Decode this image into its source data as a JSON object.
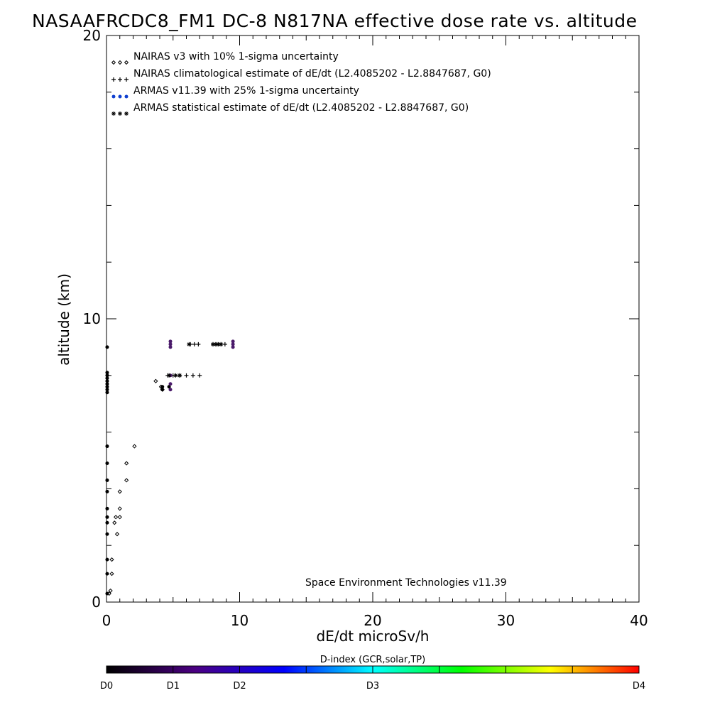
{
  "chart_data": {
    "type": "scatter",
    "title": "NASAAFRCDC8_FM1 DC-8   N817NA effective dose rate vs. altitude",
    "xlabel": "dE/dt microSv/h",
    "ylabel": "altitude (km)",
    "xlim": [
      0,
      40
    ],
    "ylim": [
      0,
      20
    ],
    "x_ticks": [
      "0",
      "10",
      "20",
      "30",
      "40"
    ],
    "y_ticks": [
      "0",
      "10",
      "20"
    ],
    "legend_position": "top-left",
    "credit": "Space Environment Technologies v11.39",
    "legend": [
      {
        "marker": "diamond",
        "label": "NAIRAS v3 with 10% 1-sigma uncertainty"
      },
      {
        "marker": "plus",
        "label": "NAIRAS climatological estimate of dE/dt (L2.4085202 - L2.8847687, G0)"
      },
      {
        "marker": "dot",
        "label": "ARMAS v11.39 with 25% 1-sigma uncertainty"
      },
      {
        "marker": "asterisk",
        "label": "ARMAS statistical estimate of dE/dt (L2.4085202 - L2.8847687, G0)"
      }
    ],
    "series": [
      {
        "marker": "diamond",
        "color": "#000000",
        "points": [
          [
            0.2,
            0.3
          ],
          [
            0.3,
            0.4
          ],
          [
            0.4,
            1.0
          ],
          [
            0.4,
            1.5
          ],
          [
            0.8,
            2.4
          ],
          [
            0.6,
            2.8
          ],
          [
            0.7,
            3.0
          ],
          [
            1.0,
            3.0
          ],
          [
            1.0,
            3.3
          ],
          [
            1.0,
            3.9
          ],
          [
            1.5,
            4.3
          ],
          [
            1.5,
            4.9
          ],
          [
            2.1,
            5.5
          ],
          [
            3.7,
            7.8
          ],
          [
            4.1,
            7.6
          ],
          [
            4.2,
            7.5
          ]
        ]
      },
      {
        "marker": "plus",
        "color": "#000000",
        "points": [
          [
            4.6,
            8.0
          ],
          [
            5.0,
            8.0
          ],
          [
            5.5,
            8.0
          ],
          [
            6.0,
            8.0
          ],
          [
            6.5,
            8.0
          ],
          [
            7.0,
            8.0
          ],
          [
            6.3,
            9.1
          ],
          [
            6.6,
            9.1
          ],
          [
            6.9,
            9.1
          ],
          [
            8.0,
            9.1
          ],
          [
            8.3,
            9.1
          ],
          [
            8.6,
            9.1
          ],
          [
            8.9,
            9.1
          ]
        ]
      },
      {
        "marker": "dot",
        "color": "#000000",
        "points": [
          [
            0.05,
            0.3
          ],
          [
            0.05,
            1.0
          ],
          [
            0.05,
            1.5
          ],
          [
            0.05,
            2.4
          ],
          [
            0.05,
            2.8
          ],
          [
            0.05,
            3.0
          ],
          [
            0.05,
            3.3
          ],
          [
            0.05,
            3.9
          ],
          [
            0.05,
            4.3
          ],
          [
            0.05,
            4.9
          ],
          [
            0.05,
            5.5
          ],
          [
            0.05,
            7.4
          ],
          [
            0.05,
            7.5
          ],
          [
            0.05,
            7.6
          ],
          [
            0.05,
            7.7
          ],
          [
            0.05,
            7.8
          ],
          [
            0.05,
            7.9
          ],
          [
            0.05,
            8.0
          ],
          [
            0.05,
            8.1
          ],
          [
            0.05,
            9.0
          ],
          [
            4.2,
            7.6
          ],
          [
            4.2,
            7.5
          ],
          [
            4.7,
            7.6
          ]
        ]
      },
      {
        "marker": "dot",
        "color": "#4a1a6a",
        "points": [
          [
            4.8,
            7.5
          ],
          [
            4.8,
            7.7
          ],
          [
            4.8,
            8.0
          ],
          [
            4.8,
            9.0
          ],
          [
            4.8,
            9.1
          ],
          [
            4.8,
            9.2
          ],
          [
            9.5,
            9.0
          ],
          [
            9.5,
            9.1
          ],
          [
            9.5,
            9.2
          ]
        ]
      },
      {
        "marker": "asterisk",
        "color": "#000000",
        "points": [
          [
            4.7,
            8.0
          ],
          [
            5.2,
            8.0
          ],
          [
            5.5,
            8.0
          ],
          [
            6.2,
            9.1
          ],
          [
            8.0,
            9.1
          ],
          [
            8.2,
            9.1
          ],
          [
            8.4,
            9.1
          ],
          [
            8.6,
            9.1
          ]
        ]
      }
    ],
    "colorbar": {
      "title": "D-index (GCR,solar,TP)",
      "stops": [
        "#000000",
        "#4b0082",
        "#0000ff",
        "#00ffff",
        "#00ff00",
        "#ffff00",
        "#ff0000"
      ],
      "labels": [
        {
          "text": "D0",
          "value": 0
        },
        {
          "text": "D1",
          "value": 0.125
        },
        {
          "text": "D2",
          "value": 0.25
        },
        {
          "text": "D3",
          "value": 0.5
        },
        {
          "text": "D4",
          "value": 1.0
        }
      ]
    }
  }
}
